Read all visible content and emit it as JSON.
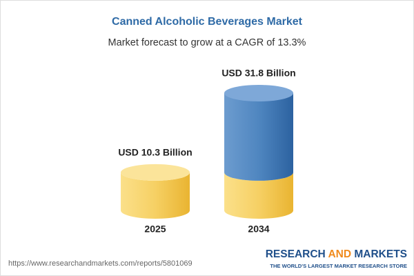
{
  "chart_data": {
    "type": "cylinder",
    "title": "Canned Alcoholic Beverages Market",
    "subtitle": "Market forecast to grow at a CAGR of 13.3%",
    "categories": [
      "2025",
      "2034"
    ],
    "values": [
      10.3,
      31.8
    ],
    "value_labels": [
      "USD 10.3 Billion",
      "USD 31.8 Billion"
    ],
    "color": "#f2c74e",
    "growth_color": "#3d78b6",
    "source": "https://www.researchandmarkets.com/reports/5801069",
    "brand": [
      "RESEARCH",
      "AND",
      "MARKETS"
    ],
    "tagline": "THE WORLD'S LARGEST MARKET RESEARCH STORE"
  }
}
